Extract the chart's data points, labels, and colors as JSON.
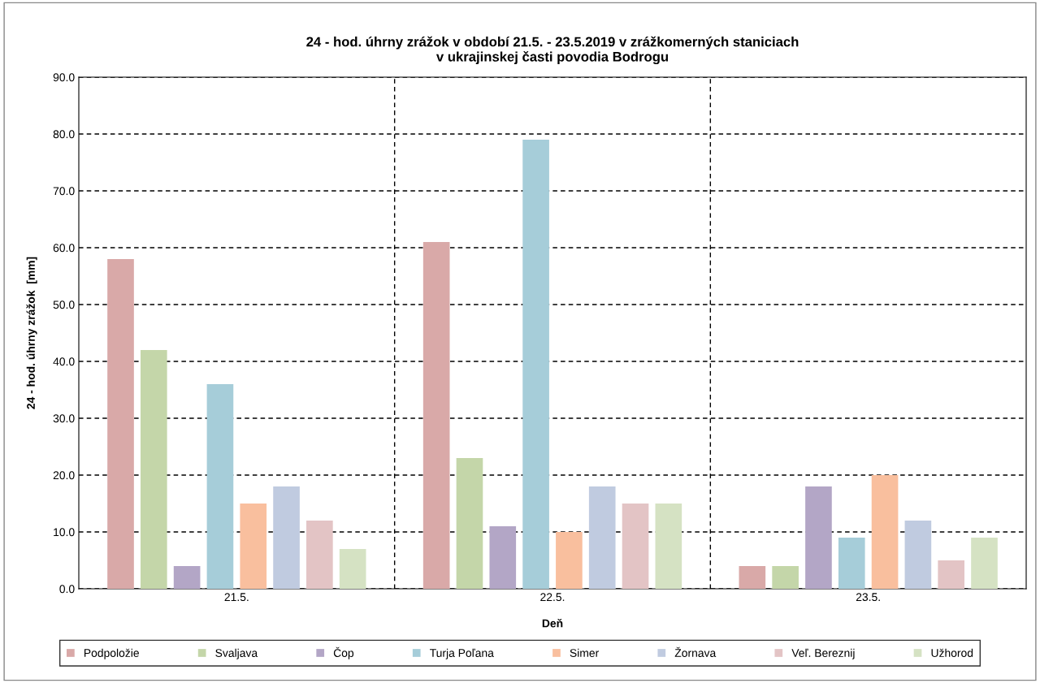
{
  "chart_data": {
    "type": "bar",
    "title": "24 - hod. úhrny zrážok v období 21.5. - 23.5.2019 v zrážkomerných staniciach\nv ukrajinskej časti povodia Bodrogu",
    "xlabel": "Deň",
    "ylabel": "24 - hod. úhrny zrážok  [mm]",
    "categories": [
      "21.5.",
      "22.5.",
      "23.5."
    ],
    "series": [
      {
        "name": "Podpoložie",
        "color": "#d9a9a8",
        "values": [
          58,
          61,
          4
        ]
      },
      {
        "name": "Svaljava",
        "color": "#c4d6a9",
        "values": [
          42,
          23,
          4
        ]
      },
      {
        "name": "Čop",
        "color": "#b3a6c6",
        "values": [
          4,
          11,
          18
        ]
      },
      {
        "name": "Turja Poľana",
        "color": "#a6cdd9",
        "values": [
          36,
          79,
          9
        ]
      },
      {
        "name": "Simer",
        "color": "#f9bf9e",
        "values": [
          15,
          10,
          20
        ]
      },
      {
        "name": "Žornava",
        "color": "#c0cbe0",
        "values": [
          18,
          18,
          12
        ]
      },
      {
        "name": "Veľ. Bereznij",
        "color": "#e3c4c5",
        "values": [
          12,
          15,
          5
        ]
      },
      {
        "name": "Užhorod",
        "color": "#d5e2c3",
        "values": [
          7,
          15,
          9
        ]
      }
    ],
    "ylim": [
      0,
      90
    ],
    "yticks": [
      {
        "value": 0,
        "label": "0.0"
      },
      {
        "value": 10,
        "label": "10.0"
      },
      {
        "value": 20,
        "label": "20.0"
      },
      {
        "value": 30,
        "label": "30.0"
      },
      {
        "value": 40,
        "label": "40.0"
      },
      {
        "value": 50,
        "label": "50.0"
      },
      {
        "value": 60,
        "label": "60.0"
      },
      {
        "value": 70,
        "label": "70.0"
      },
      {
        "value": 80,
        "label": "80.0"
      },
      {
        "value": 90,
        "label": "90.0"
      }
    ],
    "grid": true,
    "line_style": "dashed",
    "legend": "bottom"
  }
}
